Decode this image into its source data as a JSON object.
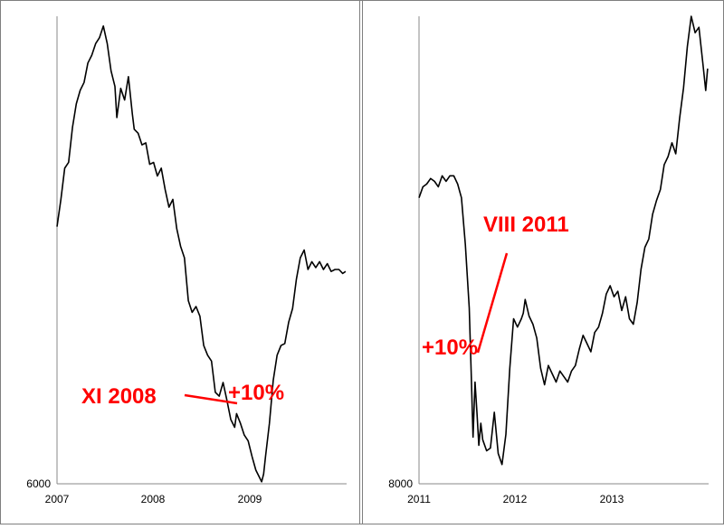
{
  "chart_data": [
    {
      "type": "line",
      "title": "",
      "xlabel": "",
      "ylabel": "",
      "x_ticks": [
        "2007",
        "2008",
        "2009"
      ],
      "y_ticks": [
        "6000"
      ],
      "xlim": [
        2007.0,
        2010.0
      ],
      "ylim": [
        6000,
        30000
      ],
      "grid": false,
      "series": [
        {
          "x": [
            2007.0,
            2007.04,
            2007.08,
            2007.12,
            2007.16,
            2007.2,
            2007.24,
            2007.28,
            2007.32,
            2007.36,
            2007.4,
            2007.44,
            2007.48,
            2007.52,
            2007.56,
            2007.6,
            2007.62,
            2007.66,
            2007.7,
            2007.74,
            2007.78,
            2007.8,
            2007.84,
            2007.88,
            2007.92,
            2007.96,
            2008.0,
            2008.04,
            2008.08,
            2008.12,
            2008.16,
            2008.2,
            2008.24,
            2008.28,
            2008.32,
            2008.36,
            2008.4,
            2008.44,
            2008.48,
            2008.52,
            2008.56,
            2008.6,
            2008.64,
            2008.68,
            2008.72,
            2008.76,
            2008.8,
            2008.84,
            2008.86,
            2008.9,
            2008.94,
            2008.98,
            2009.02,
            2009.06,
            2009.1,
            2009.12,
            2009.14,
            2009.16,
            2009.2,
            2009.24,
            2009.28,
            2009.32,
            2009.36,
            2009.4,
            2009.44,
            2009.48,
            2009.52,
            2009.56,
            2009.6,
            2009.64,
            2009.68,
            2009.72,
            2009.76,
            2009.8,
            2009.84,
            2009.88,
            2009.92,
            2009.96,
            2009.99
          ],
          "values": [
            19200,
            20600,
            22200,
            22500,
            24300,
            25500,
            26200,
            26600,
            27600,
            28000,
            28600,
            28900,
            29500,
            28600,
            27200,
            26400,
            24800,
            26300,
            25700,
            26900,
            25000,
            24200,
            24000,
            23400,
            23500,
            22400,
            22500,
            21800,
            22200,
            21100,
            20200,
            20600,
            19100,
            18200,
            17600,
            15400,
            14800,
            15100,
            14600,
            13100,
            12600,
            12300,
            10700,
            10500,
            11200,
            10300,
            9300,
            8900,
            9600,
            9100,
            8500,
            8200,
            7400,
            6700,
            6300,
            6100,
            6500,
            7400,
            9100,
            11300,
            12600,
            13100,
            13200,
            14300,
            15000,
            16500,
            17600,
            18000,
            17000,
            17400,
            17100,
            17400,
            17000,
            17300,
            16900,
            17000,
            17000,
            16800,
            16900
          ]
        }
      ],
      "annotations": [
        {
          "text": "XI 2008"
        },
        {
          "text": "+10%"
        }
      ]
    },
    {
      "type": "line",
      "title": "",
      "xlabel": "",
      "ylabel": "",
      "x_ticks": [
        "2011",
        "2012",
        "2013"
      ],
      "y_ticks": [
        "8000"
      ],
      "xlim": [
        2011.0,
        2014.0
      ],
      "ylim": [
        8000,
        25000
      ],
      "grid": false,
      "series": [
        {
          "x": [
            2011.0,
            2011.04,
            2011.08,
            2011.12,
            2011.16,
            2011.2,
            2011.24,
            2011.28,
            2011.32,
            2011.36,
            2011.4,
            2011.44,
            2011.48,
            2011.52,
            2011.54,
            2011.56,
            2011.58,
            2011.6,
            2011.62,
            2011.64,
            2011.66,
            2011.7,
            2011.74,
            2011.78,
            2011.82,
            2011.86,
            2011.9,
            2011.94,
            2011.98,
            2012.02,
            2012.06,
            2012.08,
            2012.1,
            2012.14,
            2012.18,
            2012.22,
            2012.26,
            2012.3,
            2012.34,
            2012.38,
            2012.42,
            2012.46,
            2012.5,
            2012.54,
            2012.58,
            2012.62,
            2012.66,
            2012.7,
            2012.74,
            2012.78,
            2012.82,
            2012.86,
            2012.9,
            2012.94,
            2012.98,
            2013.02,
            2013.06,
            2013.1,
            2013.14,
            2013.18,
            2013.22,
            2013.26,
            2013.3,
            2013.34,
            2013.38,
            2013.42,
            2013.46,
            2013.5,
            2013.54,
            2013.58,
            2013.62,
            2013.66,
            2013.7,
            2013.74,
            2013.78,
            2013.82,
            2013.86,
            2013.9,
            2013.94,
            2013.97,
            2013.99
          ],
          "values": [
            18400,
            18800,
            18900,
            19100,
            19000,
            18800,
            19200,
            19000,
            19200,
            19200,
            18900,
            18400,
            16700,
            14400,
            12100,
            9700,
            11700,
            10600,
            9400,
            10200,
            9600,
            9200,
            9300,
            10600,
            9100,
            8700,
            9800,
            12200,
            14000,
            13700,
            14000,
            14200,
            14700,
            14100,
            13800,
            13300,
            12200,
            11600,
            12300,
            12000,
            11700,
            12100,
            11900,
            11700,
            12100,
            12300,
            12900,
            13400,
            13100,
            12800,
            13500,
            13700,
            14200,
            14900,
            15200,
            14800,
            15000,
            14300,
            14800,
            14000,
            13800,
            14600,
            15800,
            16600,
            16900,
            17800,
            18300,
            18700,
            19600,
            19900,
            20400,
            20000,
            21300,
            22400,
            23900,
            25000,
            24400,
            24600,
            23300,
            22300,
            23100
          ]
        }
      ],
      "annotations": [
        {
          "text": "VIII 2011"
        },
        {
          "text": "+10%"
        }
      ]
    }
  ]
}
